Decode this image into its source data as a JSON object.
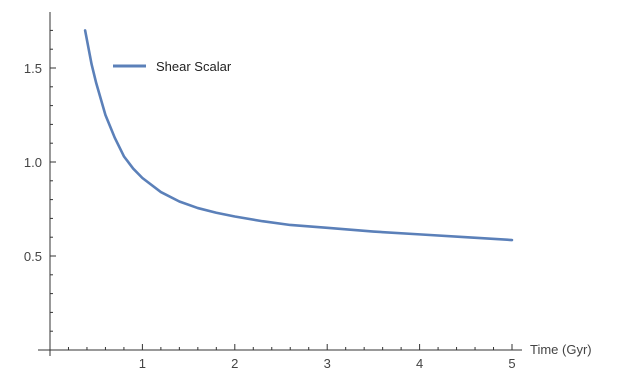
{
  "chart_data": {
    "type": "line",
    "title": "",
    "xlabel": "Time (Gyr)",
    "ylabel": "",
    "xlim": [
      0.0,
      5.0
    ],
    "ylim": [
      0.0,
      1.75
    ],
    "x_ticks": [
      1,
      2,
      3,
      4,
      5
    ],
    "x_tick_labels": [
      "1",
      "2",
      "3",
      "4",
      "5"
    ],
    "y_ticks": [
      0.5,
      1.0,
      1.5
    ],
    "y_tick_labels": [
      "0.5",
      "1.0",
      "1.5"
    ],
    "grid": false,
    "legend_position": "top-left",
    "series": [
      {
        "name": "Shear Scalar",
        "color": "#5b80b9",
        "x": [
          0.38,
          0.45,
          0.5,
          0.6,
          0.7,
          0.8,
          0.9,
          1.0,
          1.2,
          1.4,
          1.6,
          1.8,
          2.0,
          2.3,
          2.6,
          3.0,
          3.5,
          4.0,
          4.5,
          5.0
        ],
        "y": [
          1.7,
          1.52,
          1.42,
          1.25,
          1.13,
          1.03,
          0.965,
          0.915,
          0.84,
          0.79,
          0.755,
          0.73,
          0.71,
          0.685,
          0.665,
          0.65,
          0.63,
          0.615,
          0.6,
          0.585
        ]
      }
    ]
  }
}
